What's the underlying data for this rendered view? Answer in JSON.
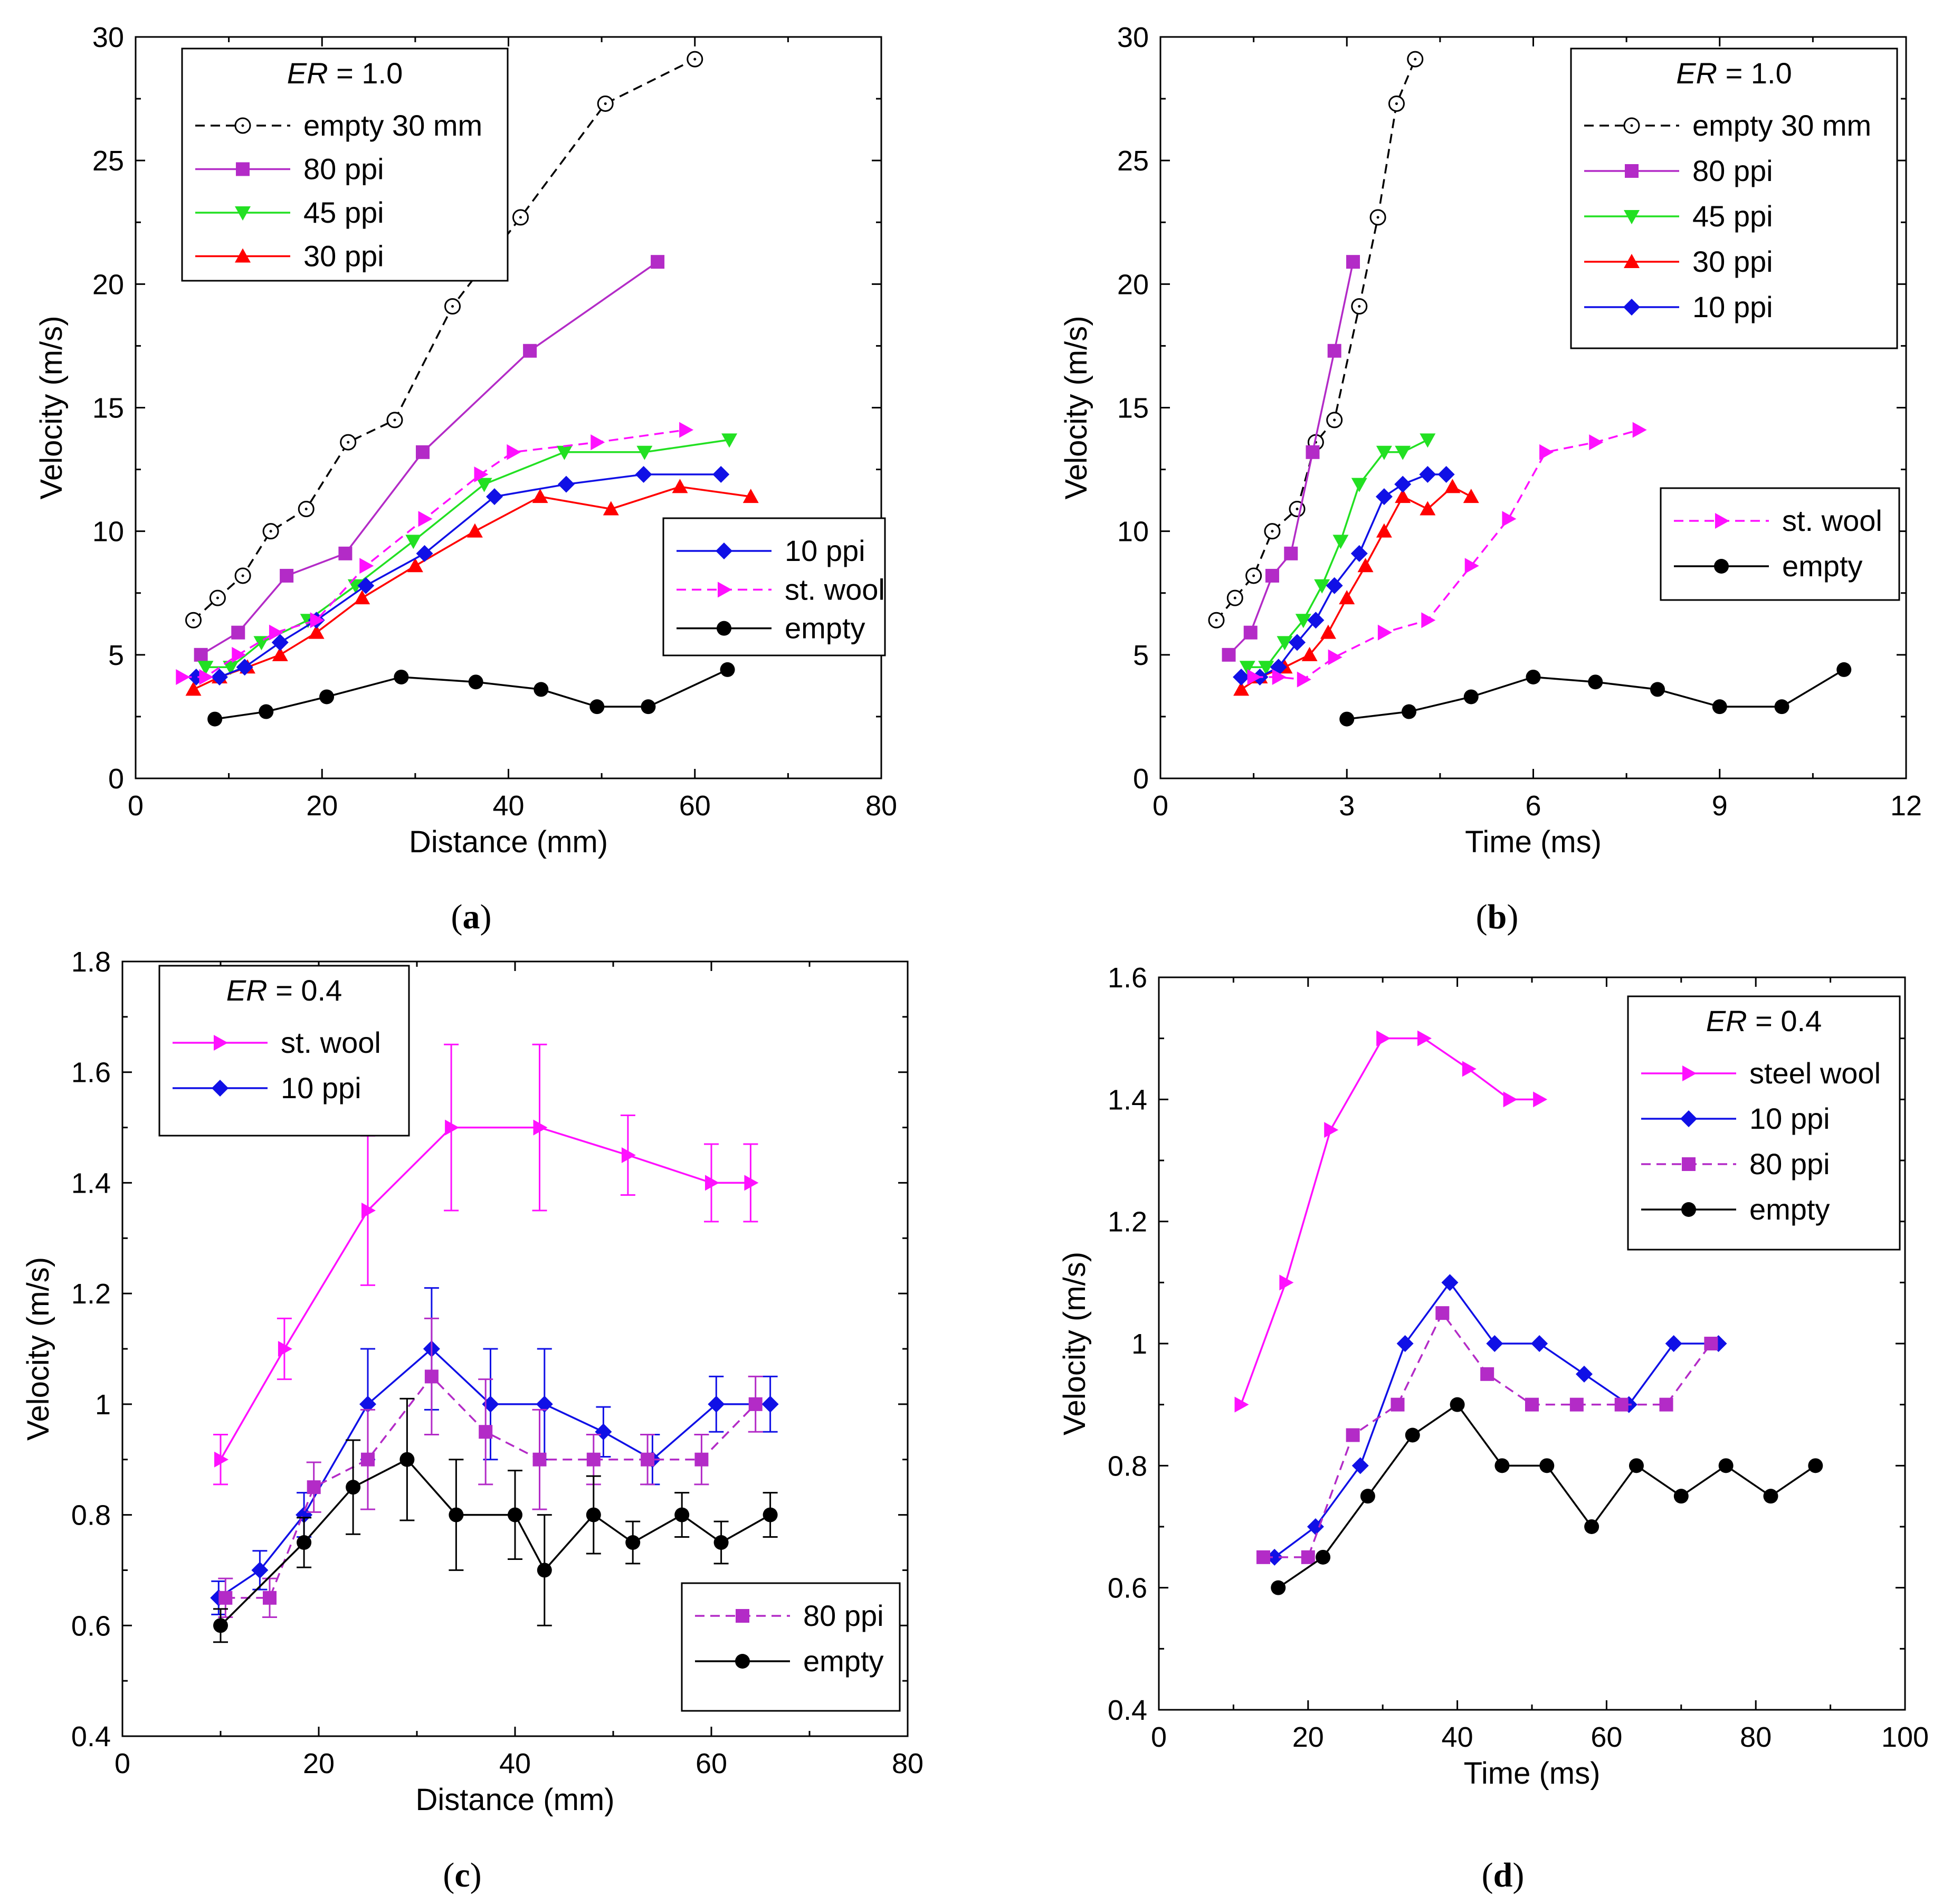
{
  "colors": {
    "empty30": "#000000",
    "ppi80": "#b32bc7",
    "ppi45": "#22e022",
    "ppi30": "#ff0000",
    "ppi10": "#1010e6",
    "stwool": "#ff10ff",
    "empty": "#000000"
  },
  "chart_data": [
    {
      "id": "a",
      "type": "line",
      "caption": "(a)",
      "xlabel": "Distance (mm)",
      "ylabel": "Velocity (m/s)",
      "xlim": [
        0,
        80
      ],
      "ylim": [
        0,
        30
      ],
      "xticks": [
        0,
        20,
        40,
        60,
        80
      ],
      "yticks": [
        0,
        5,
        10,
        15,
        20,
        25,
        30
      ],
      "xtick_labels": [
        "0",
        "20",
        "40",
        "60",
        "80"
      ],
      "ytick_labels": [
        "0",
        "5",
        "10",
        "15",
        "20",
        "25",
        "30"
      ],
      "legends": [
        {
          "title_italic": "ER",
          "title_rest": " = 1.0",
          "position": "top-left",
          "entries": [
            "empty 30 mm",
            "80 ppi",
            "45 ppi",
            "30 ppi"
          ]
        },
        {
          "title_italic": "",
          "title_rest": "",
          "position": "middle-right",
          "entries": [
            "10 ppi",
            "st. wool",
            "empty"
          ]
        }
      ],
      "series": [
        {
          "name": "empty 30 mm",
          "color_key": "empty30",
          "marker": "circle-open",
          "dash": true,
          "x": [
            6.2,
            8.8,
            11.5,
            14.5,
            18.3,
            22.8,
            27.8,
            34,
            41.3,
            50.4,
            60
          ],
          "y": [
            6.4,
            7.3,
            8.2,
            10,
            10.9,
            13.6,
            14.5,
            19.1,
            22.7,
            27.3,
            29.1
          ]
        },
        {
          "name": "80 ppi",
          "color_key": "ppi80",
          "marker": "square",
          "dash": false,
          "x": [
            7,
            11,
            16.2,
            22.5,
            30.8,
            42.3,
            56
          ],
          "y": [
            5,
            5.9,
            8.2,
            9.1,
            13.2,
            17.3,
            20.9
          ]
        },
        {
          "name": "45 ppi",
          "color_key": "ppi45",
          "marker": "triangle-down",
          "dash": false,
          "x": [
            7.5,
            10.2,
            13.5,
            18.5,
            23.6,
            29.8,
            37.4,
            46,
            54.6,
            63.7
          ],
          "y": [
            4.5,
            4.5,
            5.5,
            6.4,
            7.8,
            9.6,
            11.9,
            13.2,
            13.2,
            13.7
          ]
        },
        {
          "name": "30 ppi",
          "color_key": "ppi30",
          "marker": "triangle-up",
          "dash": false,
          "x": [
            6.2,
            9,
            12,
            15.5,
            19.4,
            24.3,
            30,
            36.4,
            43.4,
            51,
            58.4,
            66
          ],
          "y": [
            3.6,
            4.1,
            4.5,
            5,
            5.9,
            7.3,
            8.6,
            10,
            11.4,
            10.9,
            11.8,
            11.4
          ]
        },
        {
          "name": "10 ppi",
          "color_key": "ppi10",
          "marker": "diamond",
          "dash": false,
          "x": [
            6.5,
            9,
            11.7,
            15.5,
            19.4,
            24.7,
            31,
            38.5,
            46.2,
            54.5,
            62.8
          ],
          "y": [
            4.1,
            4.1,
            4.5,
            5.5,
            6.4,
            7.8,
            9.1,
            11.4,
            11.9,
            12.3,
            12.3
          ]
        },
        {
          "name": "st. wool",
          "color_key": "stwool",
          "marker": "triangle-right",
          "dash": true,
          "x": [
            5,
            7.5,
            11,
            15,
            19.4,
            24.7,
            31,
            37,
            40.5,
            49.5,
            59
          ],
          "y": [
            4.1,
            4.1,
            5,
            5.9,
            6.4,
            8.6,
            10.5,
            12.3,
            13.2,
            13.6,
            14.1
          ]
        },
        {
          "name": "empty",
          "color_key": "empty",
          "marker": "circle",
          "dash": false,
          "x": [
            8.5,
            14,
            20.5,
            28.5,
            36.5,
            43.5,
            49.5,
            55,
            63.5
          ],
          "y": [
            2.4,
            2.7,
            3.3,
            4.1,
            3.9,
            3.6,
            2.9,
            2.9,
            4.4
          ]
        }
      ]
    },
    {
      "id": "b",
      "type": "line",
      "caption": "(b)",
      "xlabel": "Time (ms)",
      "ylabel": "Velocity (m/s)",
      "xlim": [
        0,
        12
      ],
      "ylim": [
        0,
        30
      ],
      "xticks": [
        0,
        3,
        6,
        9,
        12
      ],
      "yticks": [
        0,
        5,
        10,
        15,
        20,
        25,
        30
      ],
      "xtick_labels": [
        "0",
        "3",
        "6",
        "9",
        "12"
      ],
      "ytick_labels": [
        "0",
        "5",
        "10",
        "15",
        "20",
        "25",
        "30"
      ],
      "legends": [
        {
          "title_italic": "ER",
          "title_rest": " = 1.0",
          "position": "top-right",
          "entries": [
            "empty 30 mm",
            "80 ppi",
            "45 ppi",
            "30 ppi",
            "10 ppi"
          ]
        },
        {
          "title_italic": "",
          "title_rest": "",
          "position": "middle-right",
          "entries": [
            "st. wool",
            "empty"
          ]
        }
      ],
      "series": [
        {
          "name": "empty 30 mm",
          "color_key": "empty30",
          "marker": "circle-open",
          "dash": true,
          "x": [
            0.9,
            1.2,
            1.5,
            1.8,
            2.2,
            2.5,
            2.8,
            3.2,
            3.5,
            3.8,
            4.1
          ],
          "y": [
            6.4,
            7.3,
            8.2,
            10,
            10.9,
            13.6,
            14.5,
            19.1,
            22.7,
            27.3,
            29.1
          ]
        },
        {
          "name": "80 ppi",
          "color_key": "ppi80",
          "marker": "square",
          "dash": false,
          "x": [
            1.1,
            1.45,
            1.8,
            2.1,
            2.45,
            2.8,
            3.1
          ],
          "y": [
            5,
            5.9,
            8.2,
            9.1,
            13.2,
            17.3,
            20.9
          ]
        },
        {
          "name": "45 ppi",
          "color_key": "ppi45",
          "marker": "triangle-down",
          "dash": false,
          "x": [
            1.4,
            1.7,
            2,
            2.3,
            2.6,
            2.9,
            3.2,
            3.6,
            3.9,
            4.3
          ],
          "y": [
            4.5,
            4.5,
            5.5,
            6.4,
            7.8,
            9.6,
            11.9,
            13.2,
            13.2,
            13.7
          ]
        },
        {
          "name": "30 ppi",
          "color_key": "ppi30",
          "marker": "triangle-up",
          "dash": false,
          "x": [
            1.3,
            1.6,
            2,
            2.4,
            2.7,
            3,
            3.3,
            3.6,
            3.9,
            4.3,
            4.7,
            5
          ],
          "y": [
            3.6,
            4.1,
            4.5,
            5,
            5.9,
            7.3,
            8.6,
            10,
            11.4,
            10.9,
            11.8,
            11.4
          ]
        },
        {
          "name": "10 ppi",
          "color_key": "ppi10",
          "marker": "diamond",
          "dash": false,
          "x": [
            1.3,
            1.6,
            1.9,
            2.2,
            2.5,
            2.8,
            3.2,
            3.6,
            3.9,
            4.3,
            4.6
          ],
          "y": [
            4.1,
            4.1,
            4.5,
            5.5,
            6.4,
            7.8,
            9.1,
            11.4,
            11.9,
            12.3,
            12.3
          ]
        },
        {
          "name": "st. wool",
          "color_key": "stwool",
          "marker": "triangle-right",
          "dash": true,
          "x": [
            1.5,
            1.9,
            2.3,
            2.8,
            3.6,
            4.3,
            5,
            5.6,
            6.2,
            7,
            7.7
          ],
          "y": [
            4.1,
            4.1,
            4,
            4.9,
            5.9,
            6.4,
            8.6,
            10.5,
            13.2,
            13.6,
            14.1
          ]
        },
        {
          "name": "empty",
          "color_key": "empty",
          "marker": "circle",
          "dash": false,
          "x": [
            3,
            4,
            5,
            6,
            7,
            8,
            9,
            10,
            11
          ],
          "y": [
            2.4,
            2.7,
            3.3,
            4.1,
            3.9,
            3.6,
            2.9,
            2.9,
            4.4
          ]
        }
      ]
    },
    {
      "id": "c",
      "type": "line",
      "caption": "(c)",
      "xlabel": "Distance (mm)",
      "ylabel": "Velocity (m/s)",
      "xlim": [
        0,
        80
      ],
      "ylim": [
        0.4,
        1.8
      ],
      "xticks": [
        0,
        20,
        40,
        60,
        80
      ],
      "yticks": [
        0.4,
        0.6,
        0.8,
        1,
        1.2,
        1.4,
        1.6,
        1.8
      ],
      "xtick_labels": [
        "0",
        "20",
        "40",
        "60",
        "80"
      ],
      "ytick_labels": [
        "0.4",
        "0.6",
        "0.8",
        "1",
        "1.2",
        "1.4",
        "1.6",
        "1.8"
      ],
      "legends": [
        {
          "title_italic": "ER",
          "title_rest": " = 0.4",
          "position": "top-left",
          "entries": [
            "st. wool",
            "10 ppi"
          ]
        },
        {
          "title_italic": "",
          "title_rest": "",
          "position": "bottom-right",
          "entries": [
            "80 ppi",
            "empty"
          ]
        }
      ],
      "series": [
        {
          "name": "st. wool",
          "color_key": "stwool",
          "marker": "triangle-right",
          "dash": false,
          "x": [
            10,
            16.5,
            25,
            33.5,
            42.5,
            51.5,
            60,
            64
          ],
          "y": [
            0.9,
            1.1,
            1.35,
            1.5,
            1.5,
            1.45,
            1.4,
            1.4
          ],
          "err": [
            0.045,
            0.055,
            0.135,
            0.15,
            0.15,
            0.072,
            0.07,
            0.07
          ]
        },
        {
          "name": "10 ppi",
          "color_key": "ppi10",
          "marker": "diamond",
          "dash": false,
          "x": [
            9.8,
            14,
            18.5,
            25,
            31.5,
            37.5,
            43,
            49,
            54,
            60.5,
            66
          ],
          "y": [
            0.65,
            0.7,
            0.8,
            1,
            1.1,
            1,
            1,
            0.95,
            0.9,
            1,
            1
          ],
          "err": [
            0.03,
            0.035,
            0.04,
            0.1,
            0.11,
            0.1,
            0.1,
            0.045,
            0.045,
            0.05,
            0.05
          ]
        },
        {
          "name": "80 ppi",
          "color_key": "ppi80",
          "marker": "square",
          "dash": true,
          "x": [
            10.5,
            15,
            19.5,
            25,
            31.5,
            37,
            42.5,
            48,
            53.5,
            59,
            64.5
          ],
          "y": [
            0.65,
            0.65,
            0.85,
            0.9,
            1.05,
            0.95,
            0.9,
            0.9,
            0.9,
            0.9,
            1
          ],
          "err": [
            0.035,
            0.035,
            0.045,
            0.09,
            0.105,
            0.095,
            0.09,
            0.045,
            0.045,
            0.045,
            0.05
          ]
        },
        {
          "name": "empty",
          "color_key": "empty",
          "marker": "circle",
          "dash": false,
          "x": [
            10,
            18.5,
            23.5,
            29,
            34,
            40,
            43,
            48,
            52,
            57,
            61,
            66
          ],
          "y": [
            0.6,
            0.75,
            0.85,
            0.9,
            0.8,
            0.8,
            0.7,
            0.8,
            0.75,
            0.8,
            0.75,
            0.8
          ],
          "err": [
            0.03,
            0.045,
            0.085,
            0.11,
            0.1,
            0.08,
            0.1,
            0.07,
            0.038,
            0.04,
            0.038,
            0.04
          ]
        }
      ]
    },
    {
      "id": "d",
      "type": "line",
      "caption": "(d)",
      "xlabel": "Time (ms)",
      "ylabel": "Velocity (m/s)",
      "xlim": [
        0,
        100
      ],
      "ylim": [
        0.4,
        1.6
      ],
      "xticks": [
        0,
        20,
        40,
        60,
        80,
        100
      ],
      "yticks": [
        0.4,
        0.6,
        0.8,
        1,
        1.2,
        1.4,
        1.6
      ],
      "xtick_labels": [
        "0",
        "20",
        "40",
        "60",
        "80",
        "100"
      ],
      "ytick_labels": [
        "0.4",
        "0.6",
        "0.8",
        "1",
        "1.2",
        "1.4",
        "1.6"
      ],
      "legends": [
        {
          "title_italic": "ER",
          "title_rest": " = 0.4",
          "position": "top-right",
          "entries": [
            "steel wool",
            "10 ppi",
            "80 ppi",
            "empty"
          ]
        }
      ],
      "series": [
        {
          "name": "steel wool",
          "color_key": "stwool",
          "marker": "triangle-right",
          "dash": false,
          "x": [
            11,
            17,
            23,
            30,
            35.5,
            41.5,
            47,
            51
          ],
          "y": [
            0.9,
            1.1,
            1.35,
            1.5,
            1.5,
            1.45,
            1.4,
            1.4
          ]
        },
        {
          "name": "10 ppi",
          "color_key": "ppi10",
          "marker": "diamond",
          "dash": false,
          "x": [
            15.5,
            21,
            27,
            33,
            39,
            45,
            51,
            57,
            63,
            69,
            75
          ],
          "y": [
            0.65,
            0.7,
            0.8,
            1,
            1.1,
            1,
            1,
            0.95,
            0.9,
            1,
            1
          ]
        },
        {
          "name": "80 ppi",
          "color_key": "ppi80",
          "marker": "square",
          "dash": true,
          "x": [
            14,
            20,
            26,
            32,
            38,
            44,
            50,
            56,
            62,
            68,
            74
          ],
          "y": [
            0.65,
            0.65,
            0.85,
            0.9,
            1.05,
            0.95,
            0.9,
            0.9,
            0.9,
            0.9,
            1
          ]
        },
        {
          "name": "empty",
          "color_key": "empty",
          "marker": "circle",
          "dash": false,
          "x": [
            16,
            22,
            28,
            34,
            40,
            46,
            52,
            58,
            64,
            70,
            76,
            82,
            88
          ],
          "y": [
            0.6,
            0.65,
            0.75,
            0.85,
            0.9,
            0.8,
            0.8,
            0.7,
            0.8,
            0.75,
            0.8,
            0.75,
            0.8
          ]
        }
      ]
    }
  ]
}
